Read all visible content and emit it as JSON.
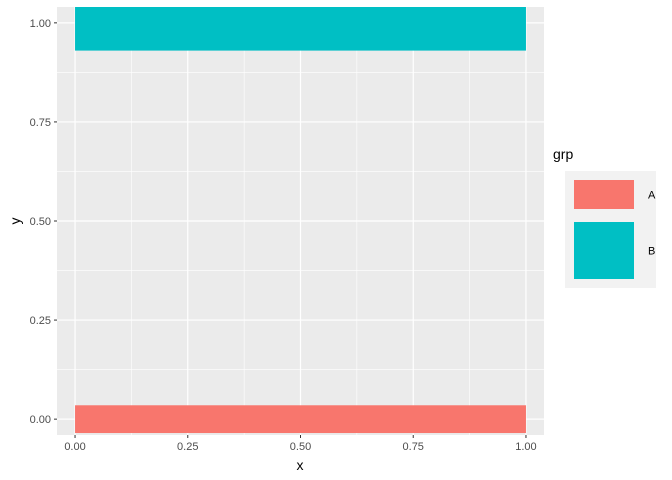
{
  "chart_data": {
    "type": "bar",
    "title": "",
    "xlabel": "x",
    "ylabel": "y",
    "xlim": [
      -0.04,
      1.04
    ],
    "ylim": [
      -0.04,
      1.04
    ],
    "x_ticks": [
      0.0,
      0.25,
      0.5,
      0.75,
      1.0
    ],
    "x_tick_labels": [
      "0.00",
      "0.25",
      "0.50",
      "0.75",
      "1.00"
    ],
    "y_ticks": [
      0.0,
      0.25,
      0.5,
      0.75,
      1.0
    ],
    "y_tick_labels": [
      "0.00",
      "0.25",
      "0.50",
      "0.75",
      "1.00"
    ],
    "grid": true,
    "legend_position": "right",
    "legend_title": "grp",
    "series": [
      {
        "name": "A",
        "color": "#F8766D",
        "xmin": 0.0,
        "xmax": 1.0,
        "ymin": -0.035,
        "ymax": 0.035
      },
      {
        "name": "B",
        "color": "#00BFC4",
        "xmin": 0.0,
        "xmax": 1.0,
        "ymin": 0.93,
        "ymax": 1.07
      }
    ]
  }
}
